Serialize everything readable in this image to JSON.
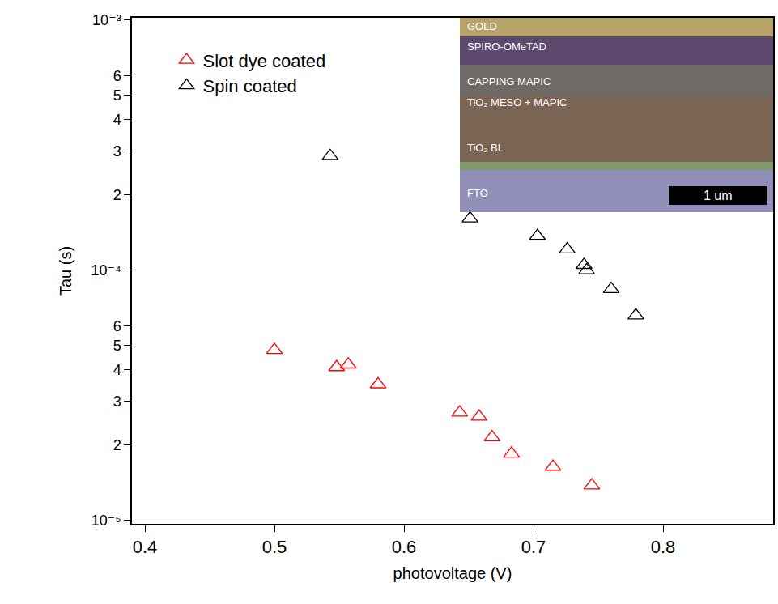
{
  "chart_data": {
    "type": "scatter",
    "x_label": "photovoltage (V)",
    "y_label": "Tau (s)",
    "log": "y",
    "grid": false,
    "legend": "top-left",
    "marker": "triangle-open",
    "series": [
      {
        "name": "Slot dye coated",
        "color": "#ff0000",
        "x": [
          0.5,
          0.548,
          0.557,
          0.58,
          0.643,
          0.658,
          0.668,
          0.683,
          0.715,
          0.745
        ],
        "values": [
          4.8e-05,
          4.1e-05,
          4.2e-05,
          3.5e-05,
          2.7e-05,
          2.6e-05,
          2.15e-05,
          1.85e-05,
          1.64e-05,
          1.38e-05
        ]
      },
      {
        "name": "Spin coated",
        "color": "#000000",
        "x": [
          0.543,
          0.651,
          0.703,
          0.726,
          0.739,
          0.741,
          0.76,
          0.779
        ],
        "values": [
          0.000286,
          0.000161,
          0.000137,
          0.000121,
          0.000105,
          0.0001,
          8.4e-05,
          6.6e-05
        ]
      }
    ],
    "xlim": [
      0.39,
      0.885
    ],
    "xticks": [
      0.4,
      0.5,
      0.6,
      0.7,
      0.8
    ],
    "ylim": [
      9.7e-06,
      0.00102
    ],
    "yticks": [
      {
        "value": 1e-05,
        "label": "10⁻⁵"
      },
      {
        "value": 2e-05,
        "label": "2"
      },
      {
        "value": 3e-05,
        "label": "3"
      },
      {
        "value": 4e-05,
        "label": "4"
      },
      {
        "value": 5e-05,
        "label": "5"
      },
      {
        "value": 6e-05,
        "label": "6"
      },
      {
        "value": 0.0001,
        "label": "10⁻⁴"
      },
      {
        "value": 0.0002,
        "label": "2"
      },
      {
        "value": 0.0003,
        "label": "3"
      },
      {
        "value": 0.0004,
        "label": "4"
      },
      {
        "value": 0.0005,
        "label": "5"
      },
      {
        "value": 0.0006,
        "label": "6"
      },
      {
        "value": 0.001,
        "label": "10⁻³"
      }
    ],
    "annotations": [
      "GOLD",
      "SPIRO-OMeTAD",
      "CAPPING MAPIC",
      "TiO₂ MESO + MAPIC",
      "TiO₂ BL",
      "FTO",
      "1 um"
    ]
  }
}
